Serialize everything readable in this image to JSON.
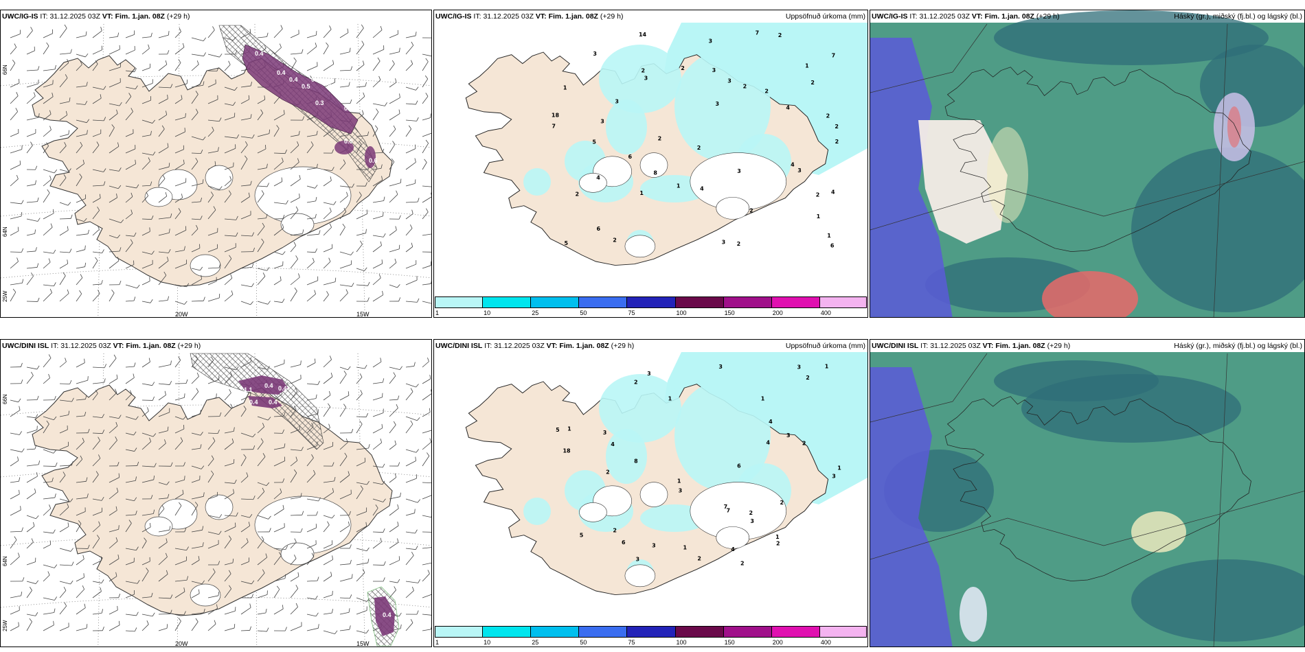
{
  "rows": [
    {
      "model": "UWC/IG-IS",
      "it_label": "IT:",
      "it_value": "31.12.2025 03Z",
      "vt_label": "VT:",
      "vt_value": "Fim. 1.jan. 08Z",
      "lead": "(+29 h)"
    },
    {
      "model": "UWC/DINI ISL",
      "it_label": "IT:",
      "it_value": "31.12.2025 03Z",
      "vt_label": "VT:",
      "vt_value": "Fim. 1.jan. 08Z",
      "lead": "(+29 h)"
    }
  ],
  "precip_title": "Uppsöfnuð úrkoma (mm)",
  "cloud_title": "Háský (gr.), miðský (fj.bl.) og lágský (bl.)",
  "lon_labels": [
    "20W",
    "15W"
  ],
  "lat_labels": [
    "66N",
    "64N",
    "25W"
  ],
  "colorbar": {
    "ticks": [
      "1",
      "10",
      "25",
      "50",
      "75",
      "100",
      "150",
      "200",
      "400"
    ],
    "colors": [
      "#b9f6f6",
      "#00e5ee",
      "#00bfee",
      "#3a6df0",
      "#2323b8",
      "#6a0a4a",
      "#a0108a",
      "#e010b0",
      "#f4b3f0"
    ]
  },
  "colors": {
    "land": "#f5e6d6",
    "sea": "#ffffff",
    "precip_light": "#b9f6f6",
    "ice_purple": "#7b3a78",
    "cloud_teal": "#4f9c86",
    "cloud_dark": "#2f6e78",
    "cloud_blue": "#5a5ad8",
    "cloud_red": "#e86a6a"
  },
  "top_icing_values": [
    "0.4",
    "0.4",
    "0.4",
    "0.5",
    "0.4",
    "0.5",
    "0.3",
    "0.9",
    "0.5",
    "0.6"
  ],
  "bottom_icing_values": [
    "1.1",
    "0.4",
    "0.4",
    "0.4",
    "0.4",
    "0.4"
  ],
  "top_precip_numbers": [
    "3",
    "2",
    "2",
    "2",
    "2",
    "4",
    "8",
    "7",
    "2",
    "1",
    "3",
    "3",
    "4",
    "1",
    "2",
    "2",
    "6",
    "18",
    "14",
    "2",
    "1",
    "3",
    "6",
    "4",
    "3",
    "2",
    "5",
    "2",
    "3",
    "7",
    "2",
    "6",
    "5",
    "3",
    "3",
    "7",
    "2",
    "3",
    "2",
    "4",
    "2",
    "1",
    "1",
    "4",
    "1",
    "3",
    "3",
    "2",
    "2"
  ],
  "bottom_precip_numbers": [
    "2",
    "2",
    "2",
    "3",
    "3",
    "4",
    "3",
    "8",
    "3",
    "6",
    "5",
    "5",
    "1",
    "7",
    "4",
    "3",
    "18",
    "2",
    "2",
    "2",
    "1",
    "7",
    "3",
    "2",
    "6",
    "4",
    "2",
    "4",
    "2",
    "1",
    "3",
    "1",
    "1",
    "3",
    "3",
    "1",
    "3",
    "1",
    "1",
    "2"
  ]
}
